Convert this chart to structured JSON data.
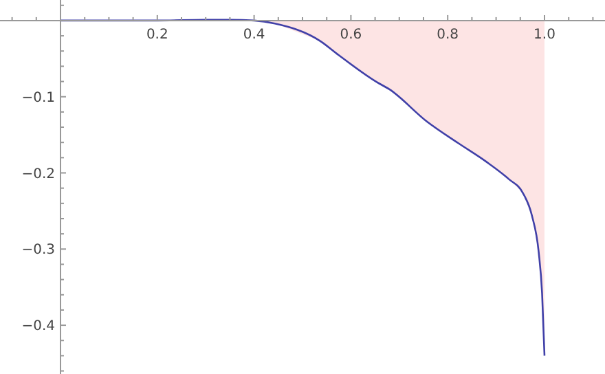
{
  "chart_data": {
    "type": "line",
    "xlim": [
      -0.125,
      1.125
    ],
    "ylim": [
      -0.464,
      0.027
    ],
    "xticks": [
      {
        "value": -0.1,
        "label": null
      },
      {
        "value": -0.05,
        "label": null
      },
      {
        "value": 0.05,
        "label": null
      },
      {
        "value": 0.1,
        "label": null
      },
      {
        "value": 0.15,
        "label": null
      },
      0.2,
      {
        "value": 0.25,
        "label": null
      },
      {
        "value": 0.3,
        "label": null
      },
      {
        "value": 0.35,
        "label": null
      },
      0.4,
      {
        "value": 0.45,
        "label": null
      },
      {
        "value": 0.5,
        "label": null
      },
      {
        "value": 0.55,
        "label": null
      },
      0.6,
      {
        "value": 0.65,
        "label": null
      },
      {
        "value": 0.7,
        "label": null
      },
      {
        "value": 0.75,
        "label": null
      },
      0.8,
      {
        "value": 0.85,
        "label": null
      },
      {
        "value": 0.9,
        "label": null
      },
      {
        "value": 0.95,
        "label": null
      },
      {
        "value": 1.0,
        "label": "1.0"
      },
      {
        "value": 1.05,
        "label": null
      },
      {
        "value": 1.1,
        "label": null
      }
    ],
    "yticks": [
      {
        "value": -0.46,
        "label": null
      },
      {
        "value": -0.44,
        "label": null
      },
      {
        "value": -0.42,
        "label": null
      },
      -0.4,
      {
        "value": -0.38,
        "label": null
      },
      {
        "value": -0.36,
        "label": null
      },
      {
        "value": -0.34,
        "label": null
      },
      {
        "value": -0.32,
        "label": null
      },
      -0.3,
      {
        "value": -0.28,
        "label": null
      },
      {
        "value": -0.26,
        "label": null
      },
      {
        "value": -0.24,
        "label": null
      },
      {
        "value": -0.22,
        "label": null
      },
      -0.2,
      {
        "value": -0.18,
        "label": null
      },
      {
        "value": -0.16,
        "label": null
      },
      {
        "value": -0.14,
        "label": null
      },
      {
        "value": -0.12,
        "label": null
      },
      -0.1,
      {
        "value": -0.08,
        "label": null
      },
      {
        "value": -0.06,
        "label": null
      },
      {
        "value": -0.04,
        "label": null
      },
      {
        "value": -0.02,
        "label": null
      },
      {
        "value": 0.02,
        "label": null
      }
    ],
    "grid": false,
    "series": [
      {
        "type": "area",
        "color": "#fde4e4",
        "x": [
          0.4,
          0.443,
          0.537,
          0.574,
          0.654,
          0.679,
          0.756,
          0.822,
          0.879,
          0.926,
          0.955,
          0.974,
          0.988,
          0.995,
          1.0,
          1.0
        ],
        "values": [
          0,
          -0.004,
          -0.027,
          -0.045,
          -0.081,
          -0.09,
          -0.132,
          -0.161,
          -0.185,
          -0.208,
          -0.226,
          -0.256,
          -0.304,
          -0.358,
          -0.44,
          -0.464
        ]
      },
      {
        "color": "#4040a8",
        "x": [
          0,
          0.1,
          0.2,
          0.3,
          0.35,
          0.4,
          0.443,
          0.537,
          0.574,
          0.654,
          0.679,
          0.756,
          0.822,
          0.879,
          0.926,
          0.955,
          0.974,
          0.988,
          0.995,
          1.0
        ],
        "values": [
          0,
          0,
          0,
          0.001,
          0.001,
          0,
          -0.004,
          -0.027,
          -0.045,
          -0.081,
          -0.09,
          -0.132,
          -0.161,
          -0.185,
          -0.208,
          -0.226,
          -0.256,
          -0.304,
          -0.358,
          -0.44
        ]
      }
    ]
  }
}
